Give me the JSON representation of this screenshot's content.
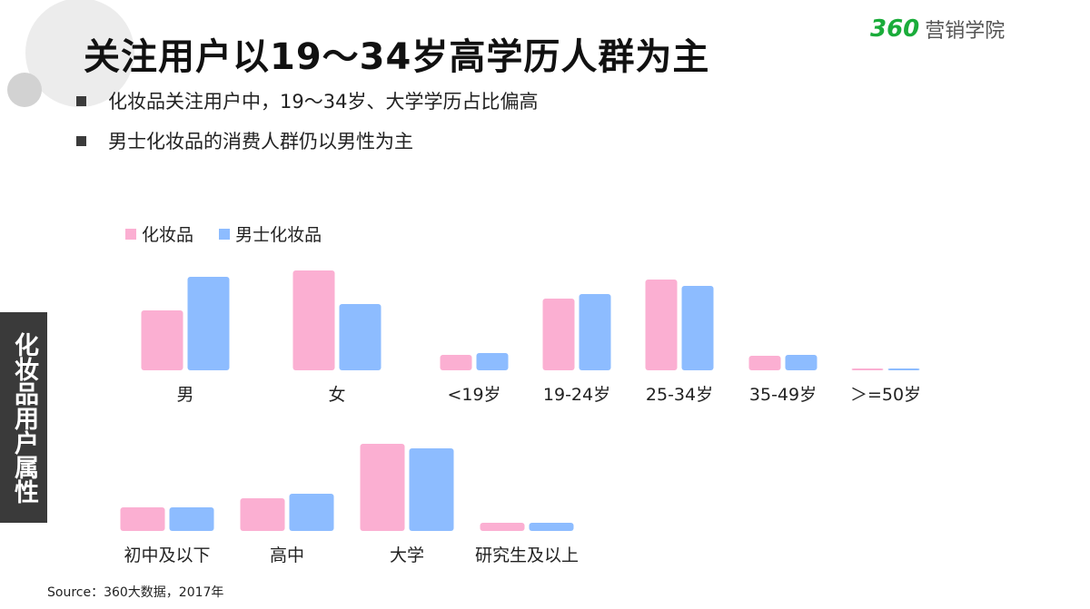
{
  "header": {
    "title": "关注用户以19～34岁高学历人群为主",
    "brand_number": "360",
    "brand_text": "营销学院"
  },
  "bullets": [
    "化妆品关注用户中，19～34岁、大学学历占比偏高",
    "男士化妆品的消费人群仍以男性为主"
  ],
  "side_label": "化妆品用户属性",
  "source": "Source：360大数据，2017年",
  "colors": {
    "cosmetics": "#fbafd2",
    "men_cosmetics": "#8dbcff",
    "side_bg": "#3a3a3a",
    "brand_green": "#1aac3a"
  },
  "chart_data": [
    {
      "type": "bar",
      "title": "",
      "categories": [
        "男",
        "女",
        "<19岁",
        "19-24岁",
        "25-34岁",
        "35-49岁",
        "＞=50岁"
      ],
      "series": [
        {
          "name": "化妆品",
          "values": [
            66,
            110,
            17,
            79,
            100,
            16,
            2
          ]
        },
        {
          "name": "男士化妆品",
          "values": [
            103,
            73,
            19,
            84,
            93,
            17,
            2
          ]
        }
      ],
      "legend": "top-left",
      "grid": false
    },
    {
      "type": "bar",
      "title": "",
      "categories": [
        "初中及以下",
        "高中",
        "大学",
        "研究生及以上"
      ],
      "series": [
        {
          "name": "化妆品",
          "values": [
            26,
            36,
            96,
            9
          ]
        },
        {
          "name": "男士化妆品",
          "values": [
            26,
            41,
            91,
            9
          ]
        }
      ],
      "legend": "none",
      "grid": false
    }
  ]
}
